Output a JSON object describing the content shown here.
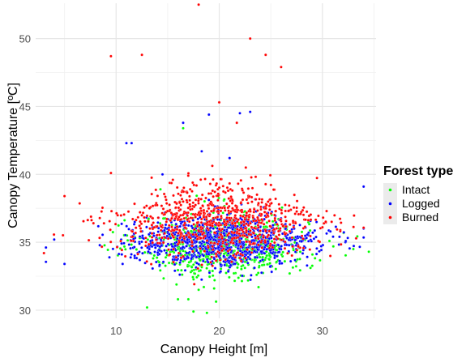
{
  "chart_data": {
    "type": "scatter",
    "xlabel": "Canopy Height [m]",
    "ylabel": "Canopy Temperature [ºC]",
    "xlim": [
      2.2,
      35.2
    ],
    "ylim": [
      29.4,
      52.6
    ],
    "x_ticks": [
      10,
      20,
      30
    ],
    "y_ticks": [
      30,
      35,
      40,
      45,
      50
    ],
    "grid": true,
    "legend": {
      "title": "Forest type",
      "position": "right"
    },
    "series": [
      {
        "name": "Intact",
        "color": "#00ff00",
        "summary": {
          "count": 700,
          "x_mean": 20.5,
          "x_sd": 4.0,
          "y_mean": 34.8,
          "y_sd": 1.3
        },
        "outliers": [
          {
            "x": 17.5,
            "y": 29.9
          },
          {
            "x": 18.8,
            "y": 29.8
          },
          {
            "x": 13.0,
            "y": 30.2
          },
          {
            "x": 16.0,
            "y": 30.8
          },
          {
            "x": 17.0,
            "y": 30.8
          },
          {
            "x": 18.0,
            "y": 31.5
          },
          {
            "x": 18.5,
            "y": 31.7
          },
          {
            "x": 19.5,
            "y": 31.6
          },
          {
            "x": 16.5,
            "y": 43.4
          },
          {
            "x": 14.3,
            "y": 38.9
          },
          {
            "x": 33.0,
            "y": 34.5
          },
          {
            "x": 34.5,
            "y": 34.3
          }
        ]
      },
      {
        "name": "Logged",
        "color": "#0000ff",
        "summary": {
          "count": 1000,
          "x_mean": 20.5,
          "x_sd": 4.5,
          "y_mean": 35.1,
          "y_sd": 1.0
        },
        "outliers": [
          {
            "x": 16.5,
            "y": 43.8
          },
          {
            "x": 19.0,
            "y": 44.4
          },
          {
            "x": 22.0,
            "y": 44.5
          },
          {
            "x": 23.0,
            "y": 44.6
          },
          {
            "x": 11.0,
            "y": 42.3
          },
          {
            "x": 11.5,
            "y": 42.3
          },
          {
            "x": 18.3,
            "y": 41.7
          },
          {
            "x": 14.5,
            "y": 40.0
          },
          {
            "x": 21.0,
            "y": 41.2
          },
          {
            "x": 34.0,
            "y": 39.1
          },
          {
            "x": 4.0,
            "y": 35.2
          },
          {
            "x": 5.0,
            "y": 33.4
          }
        ]
      },
      {
        "name": "Burned",
        "color": "#ff0000",
        "summary": {
          "count": 800,
          "x_mean": 20.0,
          "x_sd": 5.0,
          "y_mean": 36.5,
          "y_sd": 1.5
        },
        "outliers": [
          {
            "x": 18.0,
            "y": 52.5
          },
          {
            "x": 23.0,
            "y": 50.0
          },
          {
            "x": 9.5,
            "y": 48.7
          },
          {
            "x": 12.5,
            "y": 48.8
          },
          {
            "x": 24.5,
            "y": 48.8
          },
          {
            "x": 26.0,
            "y": 47.9
          },
          {
            "x": 20.0,
            "y": 45.3
          },
          {
            "x": 21.7,
            "y": 43.8
          },
          {
            "x": 15.5,
            "y": 39.6
          },
          {
            "x": 9.5,
            "y": 40.1
          },
          {
            "x": 3.0,
            "y": 34.2
          },
          {
            "x": 5.0,
            "y": 38.4
          }
        ]
      }
    ]
  }
}
